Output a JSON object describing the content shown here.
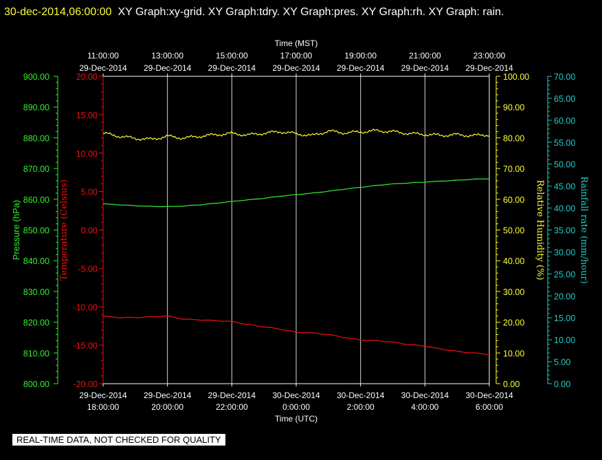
{
  "header": {
    "timestamp": "30-dec-2014,06:00:00",
    "graphs": "XY Graph:xy-grid.  XY Graph:tdry.  XY Graph:pres.  XY Graph:rh.  XY Graph: rain."
  },
  "disclaimer": "REAL-TIME DATA, NOT CHECKED FOR QUALITY",
  "colors": {
    "background": "#000000",
    "grid": "#ffffff",
    "pressure": "#33ee33",
    "temperature": "#ee1111",
    "humidity": "#ffff33",
    "rainfall": "#22cccc"
  },
  "chart_data": {
    "type": "line",
    "x_top_label": "Time (MST)",
    "x_bottom_label": "Time (UTC)",
    "x_top_ticks": [
      {
        "time": "11:00:00",
        "date": "29-Dec-2014"
      },
      {
        "time": "13:00:00",
        "date": "29-Dec-2014"
      },
      {
        "time": "15:00:00",
        "date": "29-Dec-2014"
      },
      {
        "time": "17:00:00",
        "date": "29-Dec-2014"
      },
      {
        "time": "19:00:00",
        "date": "29-Dec-2014"
      },
      {
        "time": "21:00:00",
        "date": "29-Dec-2014"
      },
      {
        "time": "23:00:00",
        "date": "29-Dec-2014"
      }
    ],
    "x_bottom_ticks": [
      {
        "date": "29-Dec-2014",
        "time": "18:00:00"
      },
      {
        "date": "29-Dec-2014",
        "time": "20:00:00"
      },
      {
        "date": "29-Dec-2014",
        "time": "22:00:00"
      },
      {
        "date": "30-Dec-2014",
        "time": "0:00:00"
      },
      {
        "date": "30-Dec-2014",
        "time": "2:00:00"
      },
      {
        "date": "30-Dec-2014",
        "time": "4:00:00"
      },
      {
        "date": "30-Dec-2014",
        "time": "6:00:00"
      }
    ],
    "axes": {
      "pressure": {
        "label": "Pressure (hPa)",
        "range": [
          800,
          900
        ],
        "ticks": [
          "900.00",
          "890.00",
          "880.00",
          "870.00",
          "860.00",
          "850.00",
          "840.00",
          "830.00",
          "820.00",
          "810.00",
          "800.00"
        ]
      },
      "temperature": {
        "label": "Temperature (Celsius)",
        "range": [
          -20,
          20
        ],
        "ticks": [
          "20.00",
          "15.00",
          "10.00",
          "5.00",
          "0.00",
          "-5.00",
          "-10.00",
          "-15.00",
          "-20.00"
        ]
      },
      "humidity": {
        "label": "Relative Humidity (%)",
        "range": [
          0,
          100
        ],
        "ticks": [
          "100.00",
          "90.00",
          "80.00",
          "70.00",
          "60.00",
          "50.00",
          "40.00",
          "30.00",
          "20.00",
          "10.00",
          "0.00"
        ]
      },
      "rainfall": {
        "label": "Rainfall rate (mm/hour)",
        "range": [
          0,
          70
        ],
        "ticks": [
          "70.00",
          "65.00",
          "60.00",
          "55.00",
          "50.00",
          "45.00",
          "40.00",
          "35.00",
          "30.00",
          "25.00",
          "20.00",
          "15.00",
          "10.00",
          "5.00",
          "0.00"
        ]
      }
    },
    "x_hours_utc": [
      0,
      0.5,
      1,
      1.5,
      2,
      2.5,
      3,
      3.5,
      4,
      4.5,
      5,
      5.5,
      6,
      6.5,
      7,
      7.5,
      8,
      8.5,
      9,
      9.5,
      10,
      10.5,
      11,
      11.5,
      12
    ],
    "x_start_utc": "29-Dec-2014 18:00:00",
    "series": [
      {
        "name": "Pressure (hPa)",
        "axis": "pressure",
        "color": "#33ee33",
        "values": [
          858.5,
          858.2,
          857.9,
          857.7,
          857.6,
          857.8,
          858.2,
          858.7,
          859.3,
          859.8,
          860.3,
          861.0,
          861.5,
          862.0,
          862.6,
          863.3,
          863.9,
          864.5,
          865.0,
          865.3,
          865.6,
          865.9,
          866.2,
          866.5,
          866.7
        ]
      },
      {
        "name": "Temperature (Celsius)",
        "axis": "temperature",
        "color": "#ee1111",
        "values": [
          -11.2,
          -11.4,
          -11.4,
          -11.3,
          -11.2,
          -11.6,
          -11.7,
          -11.8,
          -11.9,
          -12.3,
          -12.6,
          -12.9,
          -13.3,
          -13.4,
          -13.6,
          -14.0,
          -14.3,
          -14.4,
          -14.6,
          -14.9,
          -15.1,
          -15.5,
          -15.8,
          -16.0,
          -16.2
        ]
      },
      {
        "name": "Relative Humidity (%)",
        "axis": "humidity",
        "color": "#ffff33",
        "values": [
          81.5,
          80.5,
          79.8,
          79.5,
          80.5,
          79.9,
          80.5,
          81.0,
          81.4,
          80.9,
          81.5,
          82.0,
          81.3,
          80.7,
          82.2,
          81.6,
          81.9,
          82.3,
          82.0,
          81.4,
          81.1,
          80.8,
          81.0,
          80.7,
          81.0
        ]
      },
      {
        "name": "Rainfall rate (mm/hour)",
        "axis": "rainfall",
        "color": "#22cccc",
        "values": [
          0,
          0,
          0,
          0,
          0,
          0,
          0,
          0,
          0,
          0,
          0,
          0,
          0,
          0,
          0,
          0,
          0,
          0,
          0,
          0,
          0,
          0,
          0,
          0,
          0
        ]
      }
    ]
  }
}
